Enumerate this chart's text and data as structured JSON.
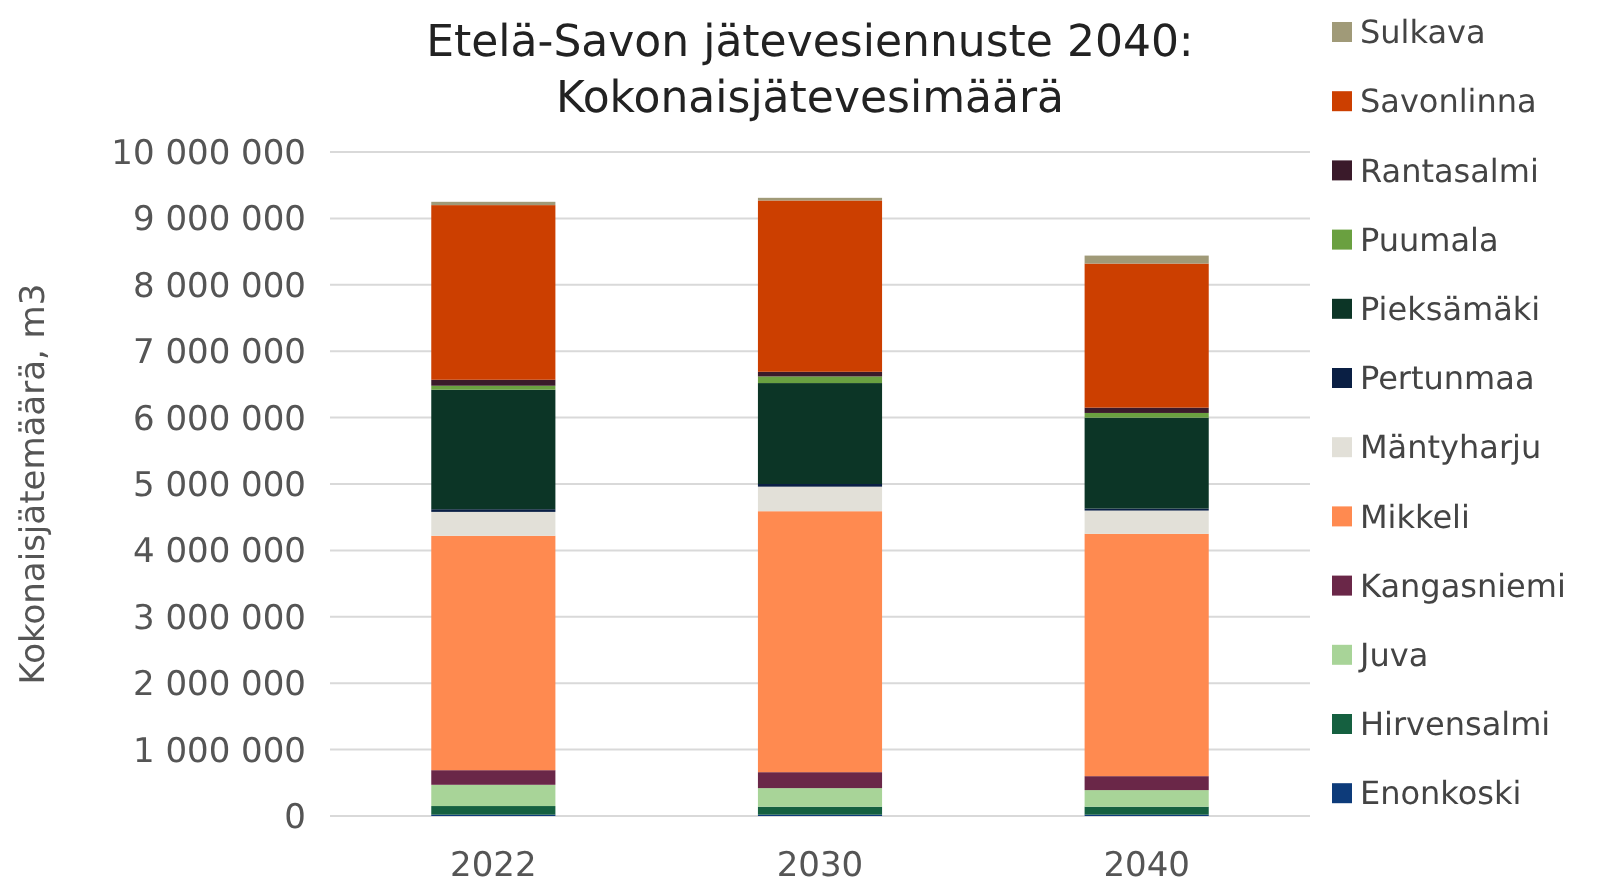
{
  "chart_data": {
    "type": "bar",
    "stacked": true,
    "title": "Etelä-Savon jätevesiennuste 2040: Kokonaisjätevesimäärä",
    "ylabel": "Kokonaisjätemäärä, m3",
    "categories": [
      "2022",
      "2030",
      "2040"
    ],
    "ylim": [
      0,
      10000000
    ],
    "yticks": [
      {
        "value": 0,
        "label": "0"
      },
      {
        "value": 1000000,
        "label": "1 000 000"
      },
      {
        "value": 2000000,
        "label": "2 000 000"
      },
      {
        "value": 3000000,
        "label": "3 000 000"
      },
      {
        "value": 4000000,
        "label": "4 000 000"
      },
      {
        "value": 5000000,
        "label": "5 000 000"
      },
      {
        "value": 6000000,
        "label": "6 000 000"
      },
      {
        "value": 7000000,
        "label": "7 000 000"
      },
      {
        "value": 8000000,
        "label": "8 000 000"
      },
      {
        "value": 9000000,
        "label": "9 000 000"
      },
      {
        "value": 10000000,
        "label": "10 000 000"
      }
    ],
    "grid": "y",
    "legend": "right",
    "series": [
      {
        "name": "Enonkoski",
        "color": "#0d3b7a",
        "values": [
          20000,
          20000,
          20000
        ]
      },
      {
        "name": "Hirvensalmi",
        "color": "#156040",
        "values": [
          130000,
          120000,
          120000
        ]
      },
      {
        "name": "Juva",
        "color": "#a8d498",
        "values": [
          320000,
          280000,
          250000
        ]
      },
      {
        "name": "Kangasniemi",
        "color": "#6a2748",
        "values": [
          220000,
          240000,
          210000
        ]
      },
      {
        "name": "Mikkeli",
        "color": "#ff8a50",
        "values": [
          3530000,
          3930000,
          3650000
        ]
      },
      {
        "name": "Mäntyharju",
        "color": "#e2e0d8",
        "values": [
          360000,
          370000,
          350000
        ]
      },
      {
        "name": "Pertunmaa",
        "color": "#0a1f44",
        "values": [
          40000,
          40000,
          30000
        ]
      },
      {
        "name": "Pieksämäki",
        "color": "#0c3526",
        "values": [
          1800000,
          1520000,
          1370000
        ]
      },
      {
        "name": "Puumala",
        "color": "#6aa040",
        "values": [
          60000,
          100000,
          70000
        ]
      },
      {
        "name": "Rantasalmi",
        "color": "#3a1a2a",
        "values": [
          90000,
          70000,
          80000
        ]
      },
      {
        "name": "Savonlinna",
        "color": "#cc3f00",
        "values": [
          2630000,
          2580000,
          2170000
        ]
      },
      {
        "name": "Sulkava",
        "color": "#a09a78",
        "values": [
          50000,
          40000,
          120000
        ]
      }
    ]
  }
}
